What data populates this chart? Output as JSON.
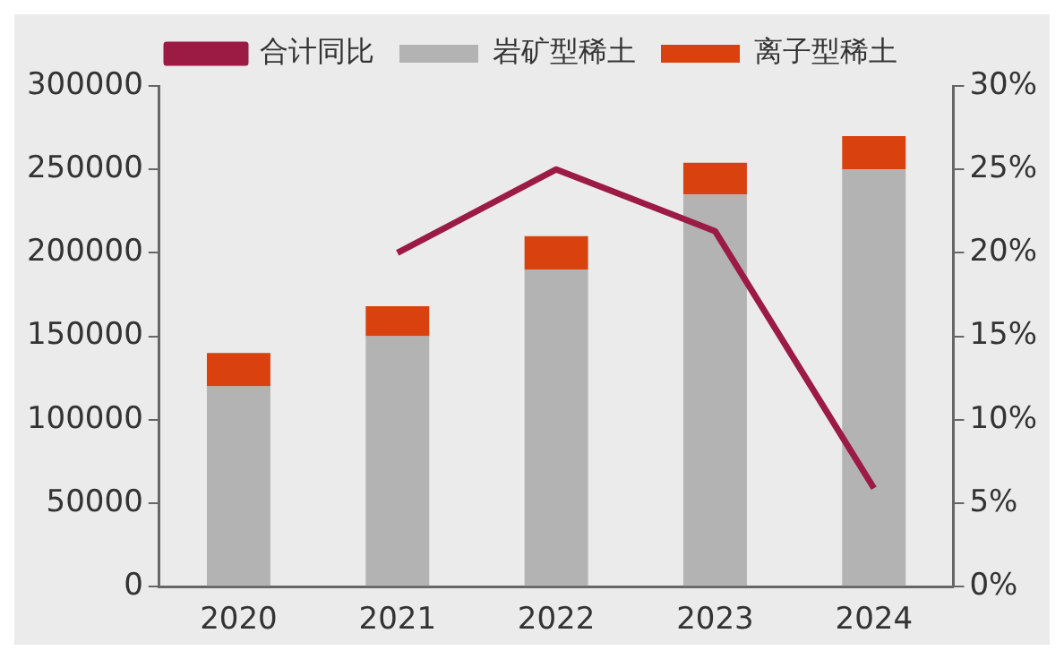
{
  "chart_data": {
    "type": "bar",
    "stacked": true,
    "categories": [
      "2020",
      "2021",
      "2022",
      "2023",
      "2024"
    ],
    "series": [
      {
        "name": "岩矿型稀土",
        "color": "#b3b3b3",
        "values": [
          120000,
          150000,
          190000,
          235000,
          250000
        ]
      },
      {
        "name": "离子型稀土",
        "color": "#d9410f",
        "values": [
          20000,
          18000,
          20000,
          19000,
          20000
        ]
      },
      {
        "name": "合计同比",
        "type": "line",
        "axis": "y2",
        "color": "#9b1b45",
        "values": [
          null,
          20,
          25,
          21.3,
          5.9
        ]
      }
    ],
    "ylim": [
      0,
      300000
    ],
    "yticks": [
      0,
      50000,
      100000,
      150000,
      200000,
      250000,
      300000
    ],
    "y2lim": [
      0,
      30
    ],
    "y2ticks": [
      {
        "value": 0,
        "label": "0%"
      },
      {
        "value": 5,
        "label": "5%"
      },
      {
        "value": 10,
        "label": "10%"
      },
      {
        "value": 15,
        "label": "15%"
      },
      {
        "value": 20,
        "label": "20%"
      },
      {
        "value": 25,
        "label": "25%"
      },
      {
        "value": 30,
        "label": "30%"
      }
    ],
    "grid": false,
    "legend": "top",
    "marker": "none"
  }
}
